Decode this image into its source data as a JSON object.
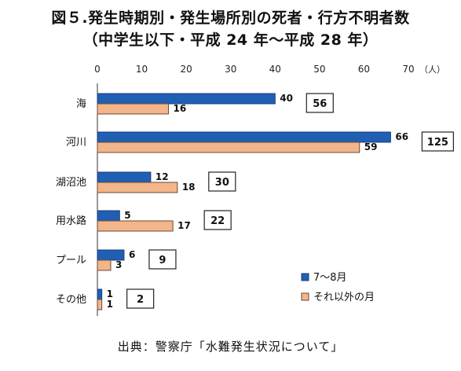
{
  "title": {
    "line1": "図５.発生時期別・発生場所別の死者・行方不明者数",
    "line2": "（中学生以下・平成 24 年～平成 28 年）"
  },
  "source": "出典：警察庁「水難発生状況について」",
  "colors": {
    "series_summer": "#1f5fb4",
    "series_other": "#f3b58a",
    "bar_stroke": "#1c3d74",
    "bar_stroke_other": "#6b4a35",
    "axis": "#333333",
    "grid": "#d9d9d9"
  },
  "chart_data": {
    "type": "bar",
    "orientation": "horizontal",
    "categories": [
      "海",
      "河川",
      "湖沼池",
      "用水路",
      "プール",
      "その他"
    ],
    "series": [
      {
        "name": "7～8月",
        "values": [
          40,
          66,
          12,
          5,
          6,
          1
        ]
      },
      {
        "name": "それ以外の月",
        "values": [
          16,
          59,
          18,
          17,
          3,
          1
        ]
      }
    ],
    "totals": [
      56,
      125,
      30,
      22,
      9,
      2
    ],
    "xlim": [
      0,
      70
    ],
    "xticks": [
      0,
      10,
      20,
      30,
      40,
      50,
      60,
      70
    ],
    "unit": "（人）",
    "legend_position": "bottom-right"
  }
}
